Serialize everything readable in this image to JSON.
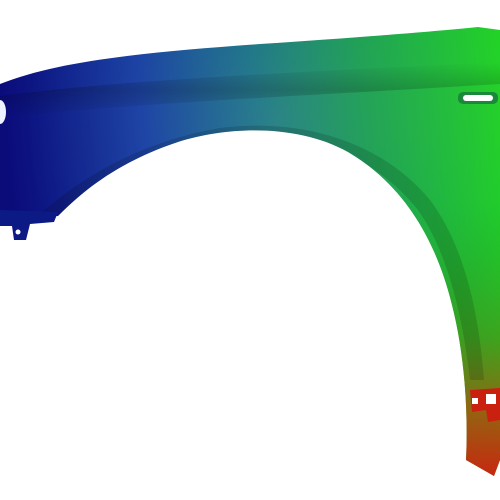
{
  "image": {
    "subject": "car-front-fender",
    "background_color": "#ffffff",
    "gradient_colors": {
      "deep_blue": "#0a0a78",
      "blue": "#123c9c",
      "teal": "#0e6e78",
      "green": "#14a03a",
      "bright_green": "#2bd21e",
      "olive": "#6e8a12",
      "orange": "#b0560c",
      "red": "#d41010",
      "highlight": "#ffffff"
    }
  }
}
